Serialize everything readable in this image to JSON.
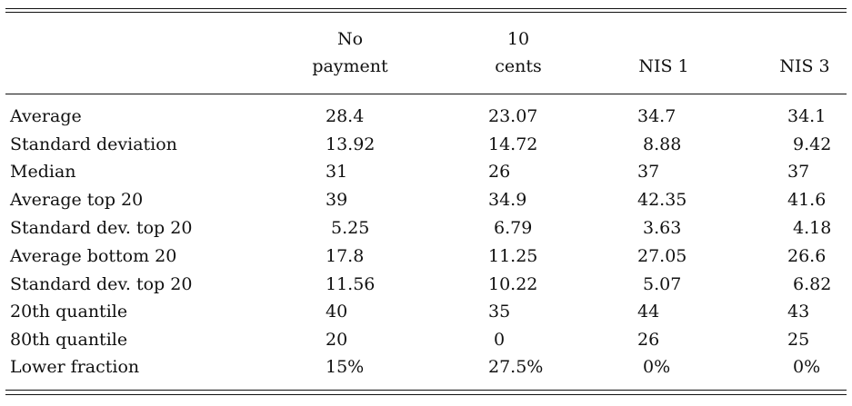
{
  "table": {
    "columns": [
      {
        "line1": "No",
        "line2": "payment"
      },
      {
        "line1": "10",
        "line2": "cents"
      },
      {
        "line1": "",
        "line2": "NIS 1"
      },
      {
        "line1": "",
        "line2": "NIS 3"
      }
    ],
    "rows": [
      {
        "label": "Average",
        "values": [
          "28.4",
          "23.07",
          "34.7",
          "34.1"
        ]
      },
      {
        "label": "Standard deviation",
        "values": [
          "13.92",
          "14.72",
          " 8.88",
          " 9.42"
        ]
      },
      {
        "label": "Median",
        "values": [
          "31",
          "26",
          "37",
          "37"
        ]
      },
      {
        "label": "Average top 20",
        "values": [
          "39",
          "34.9",
          "42.35",
          "41.6"
        ]
      },
      {
        "label": "Standard dev. top 20",
        "values": [
          " 5.25",
          " 6.79",
          " 3.63",
          " 4.18"
        ]
      },
      {
        "label": "Average bottom 20",
        "values": [
          "17.8",
          "11.25",
          "27.05",
          "26.6"
        ]
      },
      {
        "label": "Standard dev. top 20",
        "values": [
          "11.56",
          "10.22",
          " 5.07",
          " 6.82"
        ]
      },
      {
        "label": "20th quantile",
        "values": [
          "40",
          "35",
          "44",
          "43"
        ]
      },
      {
        "label": "80th quantile",
        "values": [
          "20",
          " 0",
          "26",
          "25"
        ]
      },
      {
        "label": "Lower fraction",
        "values": [
          "15%",
          "27.5%",
          " 0%",
          " 0%"
        ]
      }
    ]
  }
}
